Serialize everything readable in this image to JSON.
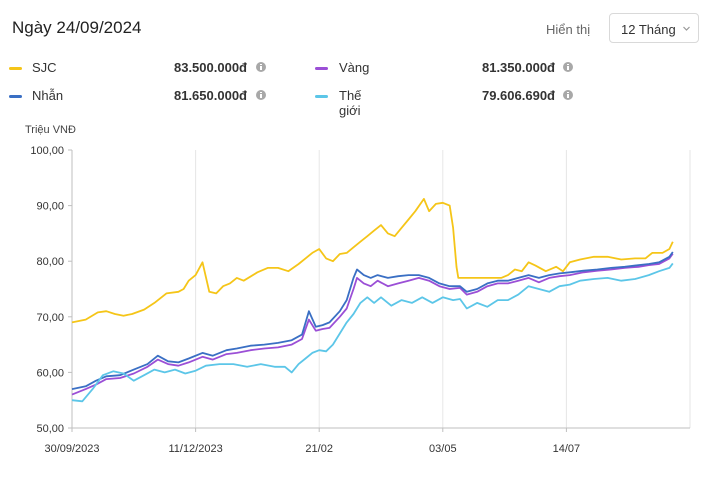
{
  "header": {
    "title": "Ngày 24/09/2024",
    "display_label": "Hiển thị",
    "range_value": "12 Tháng"
  },
  "legend": [
    {
      "name": "SJC",
      "value": "83.500.000đ",
      "color": "#f5c518"
    },
    {
      "name": "Vàng",
      "value": "81.350.000đ",
      "color": "#9b4fd6"
    },
    {
      "name": "Nhẫn",
      "value": "81.650.000đ",
      "color": "#3a6fc4"
    },
    {
      "name": "Thế giới",
      "value": "79.606.690đ",
      "color": "#5cc6e8"
    }
  ],
  "chart_data": {
    "type": "line",
    "ylabel": "Triệu VNĐ",
    "ylim": [
      50,
      100
    ],
    "y_ticks": [
      "100,00",
      "90,00",
      "80,00",
      "70,00",
      "60,00",
      "50,00"
    ],
    "x_tick_labels": [
      "30/09/2023",
      "11/12/2023",
      "21/02",
      "03/05",
      "14/07"
    ],
    "x_range_days": [
      0,
      360
    ],
    "x_tick_days": [
      0,
      72,
      144,
      216,
      288
    ],
    "grid": "vertical",
    "series": [
      {
        "name": "SJC",
        "color": "#f5c518",
        "points": [
          [
            0,
            69.0
          ],
          [
            8,
            69.5
          ],
          [
            15,
            70.8
          ],
          [
            20,
            71.0
          ],
          [
            25,
            70.5
          ],
          [
            30,
            70.2
          ],
          [
            35,
            70.5
          ],
          [
            42,
            71.3
          ],
          [
            48,
            72.5
          ],
          [
            55,
            74.2
          ],
          [
            62,
            74.5
          ],
          [
            65,
            75.0
          ],
          [
            68,
            76.5
          ],
          [
            72,
            77.5
          ],
          [
            76,
            79.8
          ],
          [
            80,
            74.5
          ],
          [
            84,
            74.2
          ],
          [
            88,
            75.5
          ],
          [
            92,
            76.0
          ],
          [
            96,
            77.0
          ],
          [
            100,
            76.5
          ],
          [
            108,
            78.0
          ],
          [
            114,
            78.8
          ],
          [
            120,
            78.8
          ],
          [
            126,
            78.2
          ],
          [
            132,
            79.5
          ],
          [
            136,
            80.5
          ],
          [
            140,
            81.5
          ],
          [
            144,
            82.2
          ],
          [
            148,
            80.5
          ],
          [
            152,
            80.0
          ],
          [
            156,
            81.3
          ],
          [
            160,
            81.5
          ],
          [
            164,
            82.5
          ],
          [
            168,
            83.5
          ],
          [
            172,
            84.5
          ],
          [
            176,
            85.5
          ],
          [
            180,
            86.5
          ],
          [
            184,
            85.0
          ],
          [
            188,
            84.5
          ],
          [
            192,
            86.0
          ],
          [
            196,
            87.5
          ],
          [
            200,
            89.0
          ],
          [
            205,
            91.2
          ],
          [
            208,
            89.0
          ],
          [
            212,
            90.3
          ],
          [
            216,
            90.5
          ],
          [
            220,
            90.0
          ],
          [
            222,
            86.0
          ],
          [
            224,
            79.0
          ],
          [
            225,
            77.0
          ],
          [
            230,
            77.0
          ],
          [
            240,
            77.0
          ],
          [
            250,
            77.0
          ],
          [
            254,
            77.5
          ],
          [
            258,
            78.5
          ],
          [
            262,
            78.2
          ],
          [
            266,
            79.8
          ],
          [
            270,
            79.2
          ],
          [
            276,
            78.2
          ],
          [
            282,
            79.0
          ],
          [
            286,
            78.2
          ],
          [
            290,
            79.8
          ],
          [
            296,
            80.3
          ],
          [
            304,
            80.8
          ],
          [
            312,
            80.8
          ],
          [
            320,
            80.3
          ],
          [
            328,
            80.5
          ],
          [
            334,
            80.5
          ],
          [
            338,
            81.5
          ],
          [
            344,
            81.5
          ],
          [
            348,
            82.2
          ],
          [
            350,
            83.5
          ]
        ]
      },
      {
        "name": "Vàng",
        "color": "#9b4fd6",
        "points": [
          [
            0,
            56.0
          ],
          [
            8,
            57.0
          ],
          [
            14,
            57.8
          ],
          [
            20,
            58.8
          ],
          [
            28,
            59.0
          ],
          [
            36,
            59.8
          ],
          [
            44,
            61.0
          ],
          [
            50,
            62.3
          ],
          [
            56,
            61.5
          ],
          [
            62,
            61.2
          ],
          [
            68,
            61.8
          ],
          [
            76,
            62.8
          ],
          [
            82,
            62.3
          ],
          [
            90,
            63.3
          ],
          [
            96,
            63.5
          ],
          [
            104,
            64.0
          ],
          [
            112,
            64.3
          ],
          [
            120,
            64.5
          ],
          [
            128,
            65.0
          ],
          [
            134,
            66.0
          ],
          [
            138,
            69.5
          ],
          [
            142,
            67.5
          ],
          [
            146,
            67.8
          ],
          [
            150,
            68.0
          ],
          [
            156,
            70.0
          ],
          [
            160,
            71.5
          ],
          [
            164,
            75.0
          ],
          [
            166,
            77.0
          ],
          [
            170,
            76.0
          ],
          [
            174,
            75.5
          ],
          [
            178,
            76.5
          ],
          [
            184,
            75.5
          ],
          [
            190,
            76.0
          ],
          [
            196,
            76.5
          ],
          [
            202,
            77.0
          ],
          [
            208,
            76.5
          ],
          [
            214,
            75.5
          ],
          [
            220,
            75.0
          ],
          [
            226,
            75.2
          ],
          [
            230,
            74.0
          ],
          [
            236,
            74.5
          ],
          [
            242,
            75.5
          ],
          [
            248,
            76.0
          ],
          [
            254,
            76.0
          ],
          [
            260,
            76.5
          ],
          [
            266,
            77.0
          ],
          [
            272,
            76.2
          ],
          [
            278,
            77.0
          ],
          [
            284,
            77.3
          ],
          [
            290,
            77.5
          ],
          [
            298,
            78.0
          ],
          [
            306,
            78.3
          ],
          [
            314,
            78.5
          ],
          [
            322,
            78.8
          ],
          [
            330,
            79.0
          ],
          [
            336,
            79.3
          ],
          [
            342,
            79.5
          ],
          [
            348,
            80.5
          ],
          [
            350,
            81.35
          ]
        ]
      },
      {
        "name": "Nhẫn",
        "color": "#3a6fc4",
        "points": [
          [
            0,
            57.0
          ],
          [
            8,
            57.5
          ],
          [
            14,
            58.5
          ],
          [
            20,
            59.3
          ],
          [
            28,
            59.5
          ],
          [
            36,
            60.5
          ],
          [
            44,
            61.5
          ],
          [
            50,
            63.0
          ],
          [
            56,
            62.0
          ],
          [
            62,
            61.8
          ],
          [
            68,
            62.5
          ],
          [
            76,
            63.5
          ],
          [
            82,
            63.0
          ],
          [
            90,
            64.0
          ],
          [
            96,
            64.3
          ],
          [
            104,
            64.8
          ],
          [
            112,
            65.0
          ],
          [
            120,
            65.3
          ],
          [
            128,
            65.8
          ],
          [
            134,
            66.8
          ],
          [
            138,
            71.0
          ],
          [
            142,
            68.2
          ],
          [
            146,
            68.5
          ],
          [
            150,
            69.0
          ],
          [
            156,
            71.0
          ],
          [
            160,
            73.0
          ],
          [
            164,
            77.0
          ],
          [
            166,
            78.5
          ],
          [
            170,
            77.5
          ],
          [
            174,
            77.0
          ],
          [
            178,
            77.5
          ],
          [
            184,
            77.0
          ],
          [
            190,
            77.3
          ],
          [
            196,
            77.5
          ],
          [
            202,
            77.5
          ],
          [
            208,
            77.0
          ],
          [
            214,
            76.0
          ],
          [
            220,
            75.5
          ],
          [
            226,
            75.5
          ],
          [
            230,
            74.5
          ],
          [
            236,
            75.0
          ],
          [
            242,
            76.0
          ],
          [
            248,
            76.5
          ],
          [
            254,
            76.5
          ],
          [
            260,
            77.0
          ],
          [
            266,
            77.5
          ],
          [
            272,
            77.0
          ],
          [
            278,
            77.5
          ],
          [
            284,
            77.8
          ],
          [
            290,
            78.0
          ],
          [
            298,
            78.3
          ],
          [
            306,
            78.5
          ],
          [
            314,
            78.8
          ],
          [
            322,
            79.0
          ],
          [
            330,
            79.3
          ],
          [
            336,
            79.5
          ],
          [
            342,
            79.8
          ],
          [
            348,
            80.8
          ],
          [
            350,
            81.65
          ]
        ]
      },
      {
        "name": "Thế giới",
        "color": "#5cc6e8",
        "points": [
          [
            0,
            55.0
          ],
          [
            6,
            54.8
          ],
          [
            12,
            57.0
          ],
          [
            18,
            59.5
          ],
          [
            24,
            60.2
          ],
          [
            30,
            59.8
          ],
          [
            36,
            58.5
          ],
          [
            42,
            59.5
          ],
          [
            48,
            60.5
          ],
          [
            54,
            60.0
          ],
          [
            60,
            60.5
          ],
          [
            66,
            59.8
          ],
          [
            72,
            60.3
          ],
          [
            78,
            61.2
          ],
          [
            86,
            61.5
          ],
          [
            94,
            61.5
          ],
          [
            102,
            61.0
          ],
          [
            110,
            61.5
          ],
          [
            118,
            61.0
          ],
          [
            124,
            61.0
          ],
          [
            128,
            60.0
          ],
          [
            132,
            61.5
          ],
          [
            136,
            62.5
          ],
          [
            140,
            63.5
          ],
          [
            144,
            64.0
          ],
          [
            148,
            63.8
          ],
          [
            152,
            65.0
          ],
          [
            156,
            67.0
          ],
          [
            160,
            69.0
          ],
          [
            164,
            70.5
          ],
          [
            168,
            72.5
          ],
          [
            172,
            73.5
          ],
          [
            176,
            72.5
          ],
          [
            180,
            73.5
          ],
          [
            186,
            72.0
          ],
          [
            192,
            73.0
          ],
          [
            198,
            72.5
          ],
          [
            204,
            73.5
          ],
          [
            210,
            72.5
          ],
          [
            216,
            73.5
          ],
          [
            222,
            73.0
          ],
          [
            226,
            73.2
          ],
          [
            230,
            71.5
          ],
          [
            236,
            72.5
          ],
          [
            242,
            71.8
          ],
          [
            248,
            73.0
          ],
          [
            254,
            73.0
          ],
          [
            260,
            74.0
          ],
          [
            266,
            75.5
          ],
          [
            272,
            75.0
          ],
          [
            278,
            74.5
          ],
          [
            284,
            75.5
          ],
          [
            290,
            75.8
          ],
          [
            296,
            76.5
          ],
          [
            304,
            76.8
          ],
          [
            312,
            77.0
          ],
          [
            320,
            76.5
          ],
          [
            328,
            76.8
          ],
          [
            336,
            77.5
          ],
          [
            342,
            78.2
          ],
          [
            348,
            78.8
          ],
          [
            350,
            79.6
          ]
        ]
      }
    ]
  }
}
